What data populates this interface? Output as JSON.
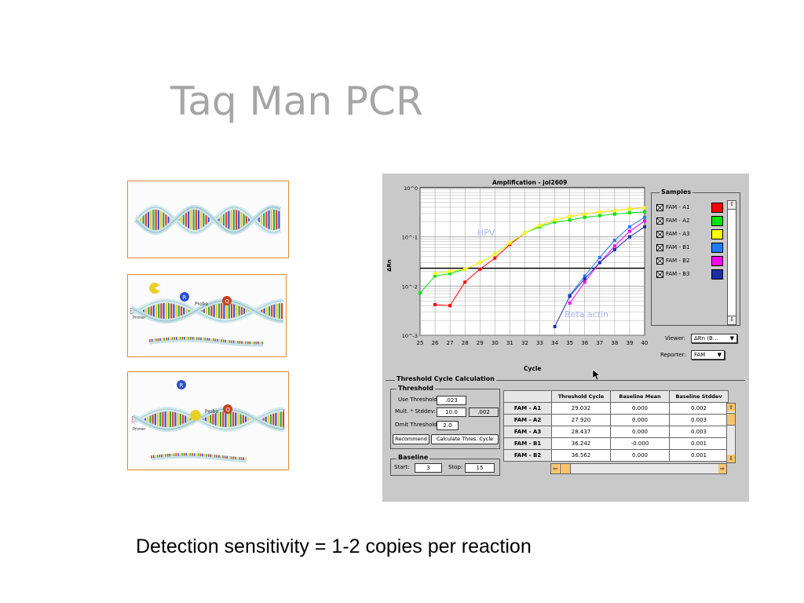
{
  "slide": {
    "title": "Taq Man PCR",
    "caption": "Detection sensitivity =  1-2 copies per reaction"
  },
  "figures": {
    "panel1": {},
    "panel2": {
      "probe_label": "Probe",
      "primer_label": "Primer",
      "r_label": "R",
      "q_label": "Q"
    },
    "panel3": {
      "probe_label": "Probe",
      "primer_label": "Primer",
      "r_label": "R",
      "q_label": "Q"
    }
  },
  "app": {
    "chart_title": "Amplification - jol2609",
    "y_axis_label": "ΔRn",
    "x_axis_label": "Cycle",
    "hpv_label": "HPV",
    "beta_label": "Beta actin",
    "y_tick_labels": [
      "10^0",
      "10^-1",
      "10^-2",
      "10^-3"
    ],
    "x_tick_labels": [
      "25",
      "26",
      "27",
      "28",
      "29",
      "30",
      "31",
      "32",
      "33",
      "34",
      "35",
      "36",
      "37",
      "38",
      "39",
      "40"
    ],
    "samples_title": "Samples",
    "samples": [
      {
        "label": "FAM - A1",
        "color": "#ff0000"
      },
      {
        "label": "FAM - A2",
        "color": "#00e600"
      },
      {
        "label": "FAM - A3",
        "color": "#ffff00"
      },
      {
        "label": "FAM - B1",
        "color": "#1e7bff"
      },
      {
        "label": "FAM - B2",
        "color": "#ff00ff"
      },
      {
        "label": "FAM - B3",
        "color": "#1a2ea8"
      }
    ],
    "viewer_label": "Viewer:",
    "viewer_value": "ΔRn (B...",
    "reporter_label": "Reporter:",
    "reporter_value": "FAM",
    "threshold_section_title": "Threshold Cycle Calculation",
    "threshold_group_title": "Threshold",
    "use_threshold_label": "Use Threshold:",
    "use_threshold_value": ".023",
    "mult_stddev_label": "Mult. * Stddev:",
    "mult_stddev_value": "10.0",
    "mult_stddev_result": ".002",
    "omit_threshold_label": "Omit Threshold:",
    "omit_threshold_value": "2.0",
    "recommend_button": "Recommend",
    "calculate_button": "Calculate Thres. Cycle",
    "baseline_group_title": "Baseline",
    "start_label": "Start:",
    "start_value": "3",
    "stop_label": "Stop:",
    "stop_value": "15",
    "table": {
      "headers": [
        "Threshold Cycle",
        "Baseline Mean",
        "Baseline Stddev"
      ],
      "rows": [
        {
          "name": "FAM - A1",
          "ct": "29.032",
          "mean": "0.000",
          "stddev": "0.002"
        },
        {
          "name": "FAM - A2",
          "ct": "27.920",
          "mean": "0.000",
          "stddev": "0.003"
        },
        {
          "name": "FAM - A3",
          "ct": "28.437",
          "mean": "0.000",
          "stddev": "0.003"
        },
        {
          "name": "FAM - B1",
          "ct": "36.242",
          "mean": "-0.000",
          "stddev": "0.001"
        },
        {
          "name": "FAM - B2",
          "ct": "36.562",
          "mean": "0.000",
          "stddev": "0.001"
        }
      ]
    }
  },
  "chart_data": {
    "type": "line",
    "title": "Amplification - jol2609",
    "xlabel": "Cycle",
    "ylabel": "ΔRn",
    "yscale": "log",
    "xlim": [
      25,
      40
    ],
    "ylim": [
      0.001,
      1
    ],
    "threshold": 0.023,
    "annotations": [
      "HPV",
      "Beta actin"
    ],
    "grid": true,
    "legend": "right",
    "series": [
      {
        "name": "FAM - A1",
        "color": "#ff0000",
        "x": [
          26,
          27,
          28,
          29,
          30,
          31,
          32,
          33,
          34,
          35,
          36,
          37,
          38,
          39,
          40
        ],
        "y": [
          0.0042,
          0.004,
          0.012,
          0.022,
          0.037,
          0.07,
          0.12,
          0.17,
          0.22,
          0.26,
          0.29,
          0.32,
          0.34,
          0.37,
          0.39
        ]
      },
      {
        "name": "FAM - A2",
        "color": "#00e600",
        "x": [
          25,
          26,
          27,
          28,
          29,
          30,
          31,
          32,
          33,
          34,
          35,
          36,
          37,
          38,
          39,
          40
        ],
        "y": [
          0.0072,
          0.016,
          0.018,
          0.022,
          0.03,
          0.045,
          0.075,
          0.12,
          0.16,
          0.2,
          0.22,
          0.25,
          0.27,
          0.29,
          0.31,
          0.32
        ]
      },
      {
        "name": "FAM - A3",
        "color": "#ffff00",
        "x": [
          26,
          27,
          28,
          29,
          30,
          31,
          32,
          33,
          34,
          35,
          36,
          37,
          38,
          39,
          40
        ],
        "y": [
          0.018,
          0.02,
          0.022,
          0.03,
          0.045,
          0.075,
          0.12,
          0.17,
          0.22,
          0.26,
          0.29,
          0.32,
          0.34,
          0.37,
          0.39
        ]
      },
      {
        "name": "FAM - B1",
        "color": "#1e7bff",
        "x": [
          35,
          36,
          37,
          38,
          39,
          40
        ],
        "y": [
          0.0065,
          0.016,
          0.038,
          0.085,
          0.16,
          0.25
        ]
      },
      {
        "name": "FAM - B2",
        "color": "#ff00ff",
        "x": [
          35,
          36,
          37,
          38,
          39,
          40
        ],
        "y": [
          0.0045,
          0.012,
          0.03,
          0.065,
          0.13,
          0.21
        ]
      },
      {
        "name": "FAM - B3",
        "color": "#1a2ea8",
        "x": [
          34,
          35,
          36,
          37,
          38,
          39,
          40
        ],
        "y": [
          0.0015,
          0.0062,
          0.014,
          0.03,
          0.055,
          0.1,
          0.16
        ]
      }
    ]
  }
}
